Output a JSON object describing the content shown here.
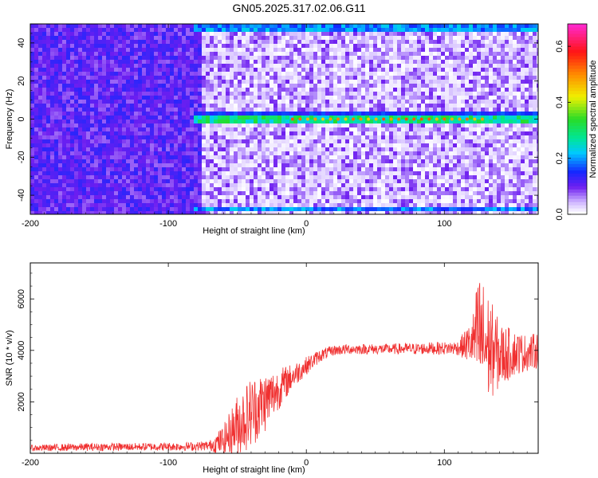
{
  "title": "GN05.2025.317.02.06.G11",
  "colors": {
    "snr_line": "#f03030",
    "ridge": "#00d8c8",
    "background_noise": "#6a2ff0"
  },
  "chart_data": [
    {
      "type": "heatmap",
      "xlabel": "Height of straight line (km)",
      "ylabel": "Frequency (Hz)",
      "colorbar_label": "Normalized spectral amplitude",
      "xlim": [
        -200,
        168
      ],
      "ylim": [
        -50,
        50
      ],
      "clim": [
        0,
        0.68
      ],
      "x_ticks": [
        -200,
        -100,
        0,
        100
      ],
      "x_tick_labels": [
        "-200",
        "-100",
        "0",
        "100"
      ],
      "y_ticks": [
        -40,
        -20,
        0,
        20,
        40
      ],
      "y_tick_labels": [
        "-40",
        "-20",
        "0",
        "20",
        "40"
      ],
      "c_ticks": [
        0,
        0.2,
        0.4,
        0.6
      ],
      "c_tick_labels": [
        "0.0",
        "0.2",
        "0.4",
        "0.6"
      ],
      "colormap": "rainbow (white-purple-blue-cyan-green-yellow-orange-red-magenta)",
      "features": {
        "ridge_frequency_hz": 0,
        "ridge_x_range_km": [
          -78,
          168
        ],
        "ridge_peak_amplitude": 0.6,
        "dense_noise_x_range_km": [
          -200,
          -78
        ],
        "edge_bands_hz": [
          -48,
          48
        ]
      }
    },
    {
      "type": "line",
      "xlabel": "Height of straight line (km)",
      "ylabel": "SNR (10 * v/v)",
      "xlim": [
        -200,
        168
      ],
      "ylim": [
        0,
        7400
      ],
      "x_ticks": [
        -200,
        -100,
        0,
        100
      ],
      "x_tick_labels": [
        "-200",
        "-100",
        "0",
        "100"
      ],
      "y_ticks": [
        2000,
        4000,
        6000
      ],
      "y_tick_labels": [
        "2000",
        "4000",
        "6000"
      ],
      "series": [
        {
          "x": [
            -200,
            -180,
            -160,
            -140,
            -120,
            -100,
            -80,
            -70,
            -60,
            -50,
            -40,
            -30,
            -20,
            -10,
            0,
            10,
            20,
            30,
            40,
            50,
            60,
            70,
            80,
            90,
            100,
            110,
            120,
            125,
            130,
            140,
            150,
            160,
            168
          ],
          "y": [
            200,
            220,
            240,
            250,
            250,
            260,
            270,
            300,
            500,
            1100,
            1600,
            2000,
            2500,
            3000,
            3400,
            3800,
            4000,
            4050,
            4050,
            4050,
            4050,
            4060,
            4060,
            4080,
            4080,
            4100,
            4300,
            4600,
            4200,
            3800,
            3900,
            3900,
            4000
          ],
          "spread": [
            120,
            140,
            150,
            150,
            150,
            160,
            170,
            200,
            600,
            1200,
            1400,
            1200,
            800,
            500,
            350,
            250,
            200,
            200,
            200,
            200,
            200,
            220,
            220,
            240,
            250,
            280,
            900,
            2500,
            2300,
            1300,
            900,
            700,
            700
          ]
        }
      ]
    }
  ]
}
